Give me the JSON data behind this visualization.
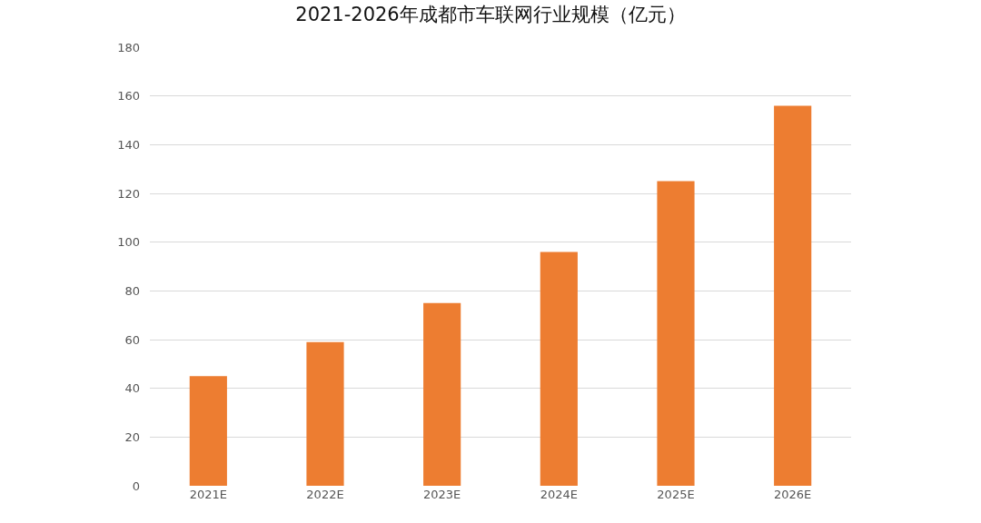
{
  "chart_data": {
    "type": "bar",
    "title": "2021-2026年成都市车联网行业规模（亿元）",
    "categories": [
      "2021E",
      "2022E",
      "2023E",
      "2024E",
      "2025E",
      "2026E"
    ],
    "values": [
      45,
      59,
      75,
      96,
      125,
      156
    ],
    "color": "#ed7d31",
    "ylim": [
      0,
      180
    ],
    "yticks": [
      0,
      20,
      40,
      60,
      80,
      100,
      120,
      140,
      160,
      180
    ],
    "grid": "y"
  }
}
